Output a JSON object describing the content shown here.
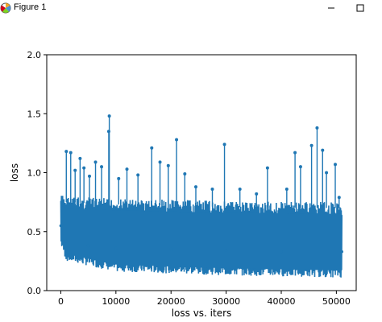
{
  "window": {
    "title": "Figure 1",
    "icons": [
      "matplotlib-figure-icon",
      "minimize-icon",
      "maximize-icon"
    ]
  },
  "chart_data": {
    "type": "line",
    "title": "",
    "xlabel": "loss vs. iters",
    "ylabel": "loss",
    "xlim": [
      -2550,
      53600
    ],
    "ylim": [
      0.0,
      2.0
    ],
    "xticks": [
      0,
      10000,
      20000,
      30000,
      40000,
      50000
    ],
    "xtick_labels": [
      "0",
      "10000",
      "20000",
      "30000",
      "40000",
      "50000"
    ],
    "yticks": [
      0.0,
      0.5,
      1.0,
      1.5,
      2.0
    ],
    "ytick_labels": [
      "0.0",
      "0.5",
      "1.0",
      "1.5",
      "2.0"
    ],
    "grid": false,
    "marker": "circle",
    "series": [
      {
        "color": "#1f77b4",
        "x_range": [
          0,
          51000
        ],
        "description_points": [
          {
            "x": 0,
            "y": 0.55
          },
          {
            "x": 1000,
            "y": 0.42
          },
          {
            "x": 5000,
            "y": 0.38
          },
          {
            "x": 10000,
            "y": 0.36
          },
          {
            "x": 20000,
            "y": 0.35
          },
          {
            "x": 30000,
            "y": 0.34
          },
          {
            "x": 40000,
            "y": 0.33
          },
          {
            "x": 51000,
            "y": 0.33
          }
        ],
        "band_top": [
          {
            "x": 0,
            "y": 0.82
          },
          {
            "x": 1000,
            "y": 0.8
          },
          {
            "x": 10000,
            "y": 0.78
          },
          {
            "x": 30000,
            "y": 0.76
          },
          {
            "x": 51000,
            "y": 0.75
          }
        ],
        "band_bottom": [
          {
            "x": 0,
            "y": 0.38
          },
          {
            "x": 1000,
            "y": 0.25
          },
          {
            "x": 10000,
            "y": 0.16
          },
          {
            "x": 30000,
            "y": 0.13
          },
          {
            "x": 51000,
            "y": 0.11
          }
        ],
        "spikes": [
          {
            "x": 1000,
            "y": 1.18
          },
          {
            "x": 1800,
            "y": 1.17
          },
          {
            "x": 2600,
            "y": 1.02
          },
          {
            "x": 3500,
            "y": 1.12
          },
          {
            "x": 4200,
            "y": 1.04
          },
          {
            "x": 5200,
            "y": 0.97
          },
          {
            "x": 6300,
            "y": 1.09
          },
          {
            "x": 7400,
            "y": 1.05
          },
          {
            "x": 8800,
            "y": 1.48
          },
          {
            "x": 8700,
            "y": 1.35
          },
          {
            "x": 10500,
            "y": 0.95
          },
          {
            "x": 12000,
            "y": 1.03
          },
          {
            "x": 14000,
            "y": 0.98
          },
          {
            "x": 16500,
            "y": 1.21
          },
          {
            "x": 18000,
            "y": 1.09
          },
          {
            "x": 19500,
            "y": 1.06
          },
          {
            "x": 21000,
            "y": 1.28
          },
          {
            "x": 22500,
            "y": 0.99
          },
          {
            "x": 24500,
            "y": 0.88
          },
          {
            "x": 27500,
            "y": 0.86
          },
          {
            "x": 29700,
            "y": 1.24
          },
          {
            "x": 32500,
            "y": 0.86
          },
          {
            "x": 35500,
            "y": 0.82
          },
          {
            "x": 37500,
            "y": 1.04
          },
          {
            "x": 41000,
            "y": 0.86
          },
          {
            "x": 42500,
            "y": 1.17
          },
          {
            "x": 43500,
            "y": 1.05
          },
          {
            "x": 45500,
            "y": 1.23
          },
          {
            "x": 46500,
            "y": 1.38
          },
          {
            "x": 47500,
            "y": 1.19
          },
          {
            "x": 48200,
            "y": 1.0
          },
          {
            "x": 49800,
            "y": 1.07
          },
          {
            "x": 50500,
            "y": 0.79
          }
        ]
      }
    ]
  }
}
